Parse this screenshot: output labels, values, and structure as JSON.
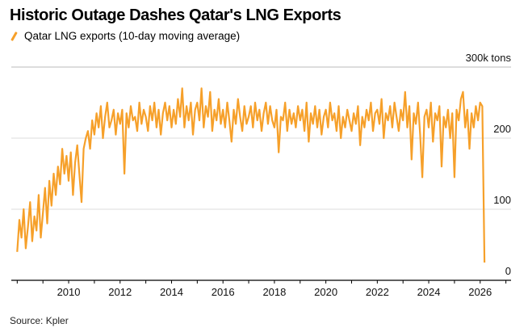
{
  "chart_data": {
    "type": "line",
    "title": "Historic Outage Dashes Qatar's LNG Exports",
    "legend": [
      "Qatar LNG exports (10-day moving average)"
    ],
    "legend_placement": "top-left",
    "ylabel": "300k tons",
    "ylim": [
      0,
      300
    ],
    "y_ticks": [
      "0",
      "100",
      "200",
      "300k tons"
    ],
    "y_tick_values": [
      0,
      100,
      200,
      300
    ],
    "xlim": [
      2007.77,
      2027.2
    ],
    "x_ticks": [
      "2010",
      "2012",
      "2014",
      "2016",
      "2018",
      "2020",
      "2022",
      "2024",
      "2026"
    ],
    "x_tick_values": [
      2010,
      2012,
      2014,
      2016,
      2018,
      2020,
      2022,
      2024,
      2026
    ],
    "grid": true,
    "color": "#f6a02a",
    "series": [
      {
        "name": "Qatar LNG exports (10-day moving average)",
        "start": 2008.0,
        "step_years": 0.08333,
        "values": [
          40,
          85,
          60,
          100,
          45,
          75,
          110,
          55,
          90,
          70,
          120,
          60,
          95,
          130,
          80,
          140,
          105,
          150,
          120,
          160,
          135,
          185,
          150,
          175,
          140,
          180,
          120,
          165,
          190,
          150,
          110,
          185,
          200,
          210,
          185,
          225,
          205,
          235,
          215,
          245,
          200,
          230,
          250,
          215,
          225,
          240,
          205,
          235,
          220,
          240,
          150,
          235,
          215,
          245,
          225,
          230,
          210,
          250,
          220,
          240,
          230,
          210,
          245,
          225,
          250,
          215,
          240,
          205,
          235,
          250,
          225,
          245,
          215,
          240,
          220,
          255,
          230,
          270,
          215,
          245,
          225,
          250,
          205,
          240,
          250,
          225,
          270,
          215,
          245,
          230,
          265,
          210,
          240,
          225,
          255,
          220,
          240,
          215,
          250,
          225,
          195,
          240,
          220,
          255,
          230,
          210,
          245,
          220,
          230,
          245,
          215,
          250,
          225,
          240,
          210,
          235,
          250,
          220,
          245,
          225,
          215,
          240,
          180,
          230,
          225,
          250,
          210,
          240,
          220,
          235,
          215,
          245,
          225,
          240,
          210,
          250,
          195,
          235,
          220,
          245,
          215,
          240,
          205,
          230,
          240,
          215,
          250,
          225,
          235,
          210,
          245,
          200,
          230,
          215,
          240,
          225,
          210,
          235,
          220,
          245,
          190,
          230,
          215,
          240,
          225,
          250,
          210,
          235,
          240,
          220,
          255,
          200,
          235,
          225,
          245,
          215,
          250,
          230,
          210,
          240,
          225,
          265,
          215,
          245,
          170,
          235,
          220,
          250,
          205,
          145,
          230,
          240,
          215,
          250,
          195,
          235,
          225,
          245,
          160,
          230,
          215,
          240,
          200,
          235,
          145,
          240,
          225,
          255,
          265,
          215,
          240,
          185,
          235,
          215,
          245,
          225,
          250,
          245,
          25
        ]
      }
    ]
  },
  "source": "Source: Kpler"
}
